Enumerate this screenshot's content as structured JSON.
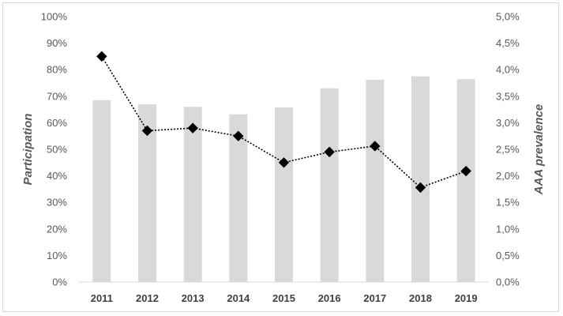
{
  "chart_data": {
    "type": "bar",
    "categories": [
      "2011",
      "2012",
      "2013",
      "2014",
      "2015",
      "2016",
      "2017",
      "2018",
      "2019"
    ],
    "series": [
      {
        "type": "bar",
        "axis": "left",
        "color": "#d9d9d9",
        "values": [
          68.5,
          67,
          66,
          63.2,
          65.8,
          73,
          76.2,
          77.5,
          76.4
        ]
      },
      {
        "type": "line",
        "axis": "right",
        "color": "#000000",
        "line_style": "dotted",
        "marker": "diamond",
        "values": [
          4.25,
          2.85,
          2.9,
          2.75,
          2.25,
          2.45,
          2.56,
          1.78,
          2.09
        ]
      }
    ],
    "ylabel": "Participation",
    "ylabel_right": "AAA prevalence",
    "ylim": [
      0,
      100
    ],
    "ylim_right": [
      0,
      5
    ],
    "yticks": [
      "0%",
      "10%",
      "20%",
      "30%",
      "40%",
      "50%",
      "60%",
      "70%",
      "80%",
      "90%",
      "100%"
    ],
    "yticks_right": [
      "0,0%",
      "0,5%",
      "1,0%",
      "1,5%",
      "2,0%",
      "2,5%",
      "3,0%",
      "3,5%",
      "4,0%",
      "4,5%",
      "5,0%"
    ],
    "grid": false,
    "legend": "none"
  }
}
